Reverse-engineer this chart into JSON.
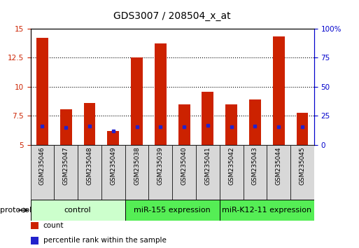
{
  "title": "GDS3007 / 208504_x_at",
  "samples": [
    "GSM235046",
    "GSM235047",
    "GSM235048",
    "GSM235049",
    "GSM235038",
    "GSM235039",
    "GSM235040",
    "GSM235041",
    "GSM235042",
    "GSM235043",
    "GSM235044",
    "GSM235045"
  ],
  "count_values": [
    14.2,
    8.1,
    8.6,
    6.2,
    12.5,
    13.7,
    8.5,
    9.6,
    8.5,
    8.9,
    14.3,
    7.8
  ],
  "percentile_values": [
    6.6,
    6.5,
    6.6,
    6.2,
    6.55,
    6.55,
    6.55,
    6.7,
    6.55,
    6.65,
    6.55,
    6.55
  ],
  "ylim": [
    5,
    15
  ],
  "yticks": [
    5,
    7.5,
    10,
    12.5,
    15
  ],
  "ytick_labels_left": [
    "5",
    "7.5",
    "10",
    "12.5",
    "15"
  ],
  "ytick_labels_right": [
    "0",
    "25",
    "50",
    "75",
    "100%"
  ],
  "bar_color": "#cc2200",
  "percentile_color": "#2222cc",
  "bar_width": 0.5,
  "group_configs": [
    {
      "indices": [
        0,
        1,
        2,
        3
      ],
      "label": "control",
      "facecolor": "#ccffcc"
    },
    {
      "indices": [
        4,
        5,
        6,
        7
      ],
      "label": "miR-155 expression",
      "facecolor": "#55ee55"
    },
    {
      "indices": [
        8,
        9,
        10,
        11
      ],
      "label": "miR-K12-11 expression",
      "facecolor": "#55ee55"
    }
  ],
  "bar_axis_color": "#cc2200",
  "pct_axis_color": "#0000cc",
  "legend_count_label": "count",
  "legend_pct_label": "percentile rank within the sample",
  "protocol_label": "protocol",
  "title_fontsize": 10,
  "tick_fontsize": 7.5,
  "sample_fontsize": 6.5,
  "group_fontsize": 8,
  "legend_fontsize": 7.5
}
